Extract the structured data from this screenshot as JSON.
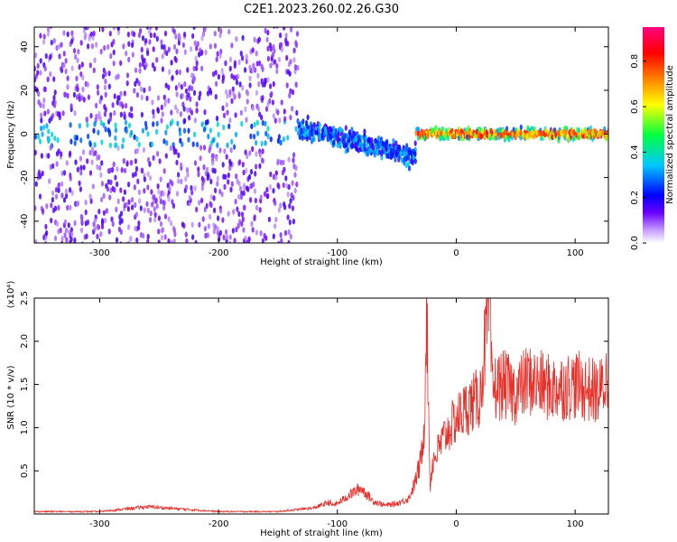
{
  "title": "C2E1.2023.260.02.26.G30",
  "chart_data": [
    {
      "type": "heatmap",
      "xlabel": "Height of straight line (km)",
      "ylabel": "Frequency (Hz)",
      "xlim": [
        -355,
        128
      ],
      "ylim": [
        -50,
        49
      ],
      "xticks": [
        -300,
        -200,
        -100,
        0,
        100
      ],
      "yticks": [
        -40,
        -20,
        0,
        20,
        40
      ],
      "colorbar": {
        "label": "Normalized spectral amplitude",
        "range": [
          0,
          0.95
        ],
        "ticks": [
          0.0,
          0.2,
          0.4,
          0.6,
          0.8
        ],
        "colors": [
          "#ffffff",
          "#6a00ff",
          "#0000ff",
          "#00ffff",
          "#00ff00",
          "#ffff00",
          "#ff8000",
          "#ff0000",
          "#ff0080"
        ]
      },
      "features": [
        {
          "x_range": [
            -355,
            -135
          ],
          "description_values": {
            "band_center_hz": 0,
            "noise_spread_hz": 50
          }
        },
        {
          "x_range": [
            -135,
            -35
          ],
          "band_center_hz_start": 3,
          "band_center_hz_end": -10
        },
        {
          "x_range": [
            -35,
            128
          ],
          "band_center_hz": 0,
          "band_halfwidth_hz": 3
        }
      ]
    },
    {
      "type": "line",
      "xlabel": "Height of straight line (km)",
      "ylabel": "SNR (10 * v/v)",
      "y_scale_label": "(x10⁴)",
      "xlim": [
        -355,
        128
      ],
      "ylim": [
        0,
        2.5
      ],
      "xticks": [
        -300,
        -200,
        -100,
        0,
        100
      ],
      "yticks": [
        0.5,
        1.0,
        1.5,
        2.0,
        2.5
      ],
      "series": [
        {
          "color": "#e8302a",
          "x": [
            -355,
            -300,
            -260,
            -200,
            -150,
            -120,
            -100,
            -90,
            -80,
            -70,
            -60,
            -50,
            -40,
            -35,
            -30,
            -27,
            -25,
            -22,
            -20,
            -10,
            0,
            10,
            20,
            28,
            30,
            40,
            50,
            60,
            80,
            100,
            120,
            128
          ],
          "y": [
            0.02,
            0.02,
            0.06,
            0.02,
            0.02,
            0.05,
            0.12,
            0.22,
            0.3,
            0.15,
            0.1,
            0.12,
            0.18,
            0.35,
            0.6,
            1.0,
            2.45,
            0.3,
            0.6,
            0.9,
            1.1,
            1.25,
            1.35,
            2.5,
            1.45,
            1.5,
            1.4,
            1.55,
            1.45,
            1.5,
            1.4,
            1.6
          ]
        }
      ]
    }
  ]
}
